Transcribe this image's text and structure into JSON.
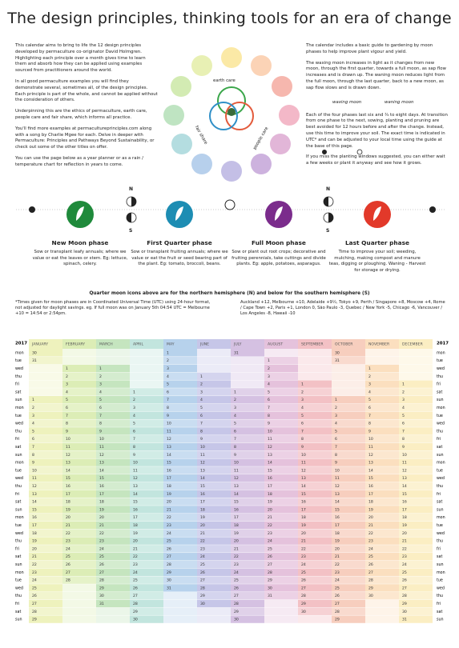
{
  "title": "The design principles, thinking tools for an era of change",
  "intro": [
    "This calendar aims to bring to life the 12 design principles developed by permaculture co-originator David Holmgren. Highlighting each principle over a month gives time to learn them and absorb how they can be applied using examples sourced from practitioners around the world.",
    "In all good permaculture examples you will find they demonstrate several, sometimes all, of the design principles. Each principle is part of the whole, and cannot be applied without the consideration of others.",
    "Underpinning this are the ethics of permaculture, earth care, people care and fair share, which informs all practice.",
    "You'll find more examples at permacultureprinciples.com along with a song by Charlie Mgee for each. Delve in deeper with Permaculture: Principles and Pathways Beyond Sustainability, or check out some of the other titles on offer.",
    "You can use the page below as a year planner or as a rain / temperature chart for reflection in years to come."
  ],
  "moon_guide": {
    "intro": [
      "The calendar includes a basic guide to gardening by moon phases to help improve plant vigour and yield.",
      "The waxing moon increases in light as it changes from new moon, through the first quarter, towards a full moon, as sap flow increases and is drawn up. The waning moon reduces light from the full moon, through the last quarter, back to a new moon, as sap flow slows and is drawn down."
    ],
    "waxing": "waxing moon",
    "waning": "waning moon",
    "details": [
      "Each of the four phases last six and ¾ to eight days. At transition from one phase to the next, sowing, planting and pruning are best avoided for 12 hours before and after the change. Instead, use this time to improve your soil. The exact time is indicated in UTC* and can be adjusted to your local time using the guide at the base of this page.",
      "If you miss the planting windows suggested, you can either wait a few weeks or plant it anyway and see how it grows."
    ]
  },
  "ethics": [
    "earth care",
    "people care",
    "fair share"
  ],
  "hemispheres": {
    "north": "N",
    "south": "S"
  },
  "phases": [
    {
      "name": "New Moon phase",
      "text": "Sow or transplant leafy annuals; where we value or eat the leaves or stem. Eg: lettuce, spinach, celery.",
      "color": "#1f8a3b"
    },
    {
      "name": "First Quarter phase",
      "text": "Sow or transplant fruiting annuals; where we value or eat the fruit or seed bearing part of the plant. Eg: tomato, broccoli, beans.",
      "color": "#1d8db3"
    },
    {
      "name": "Full Moon phase",
      "text": "Sow or plant out root crops; decorative and fruiting perennials, take cuttings and divide plants. Eg: apple, potatoes, asparagus.",
      "color": "#7b2c8c"
    },
    {
      "name": "Last Quarter phase",
      "text": "Time to improve your soil; weeding, mulching, making compost and manure teas, digging or ploughing. Waning - Harvest for storage or drying.",
      "color": "#e2392a"
    }
  ],
  "hemisphere_note": "Quarter moon icons above are for the northern hemisphere (N) and below for the southern hemisphere (S)",
  "utc_note": "*Times given for moon phases are in Coordinated Universal Time (UTC) using 24-hour format, not adjusted for daylight savings. eg. If full moon was on January 5th 04:54 UTC = Melbourne +10 = 14:54 or 2:54pm.",
  "timezones": "Auckland +12, Melbourne +10, Adelaide +9½, Tokyo +9, Perth / Singapore +8, Moscow +4, Rome / Cape Town +2, Paris +1, London 0, São Paulo -3, Quebec / New York -5, Chicago -6, Vancouver / Los Angeles -8, Hawaii -10",
  "calendar": {
    "year": "2017",
    "weekdays": [
      "mon",
      "tue",
      "wed",
      "thu",
      "fri",
      "sat",
      "sun"
    ],
    "months": [
      {
        "name": "JANUARY",
        "color": "#eef2bd",
        "days": [
          30,
          31,
          null,
          null,
          null,
          null,
          1,
          2,
          3,
          4,
          5,
          6,
          7,
          8,
          9,
          10,
          11,
          12,
          13,
          14,
          15,
          16,
          17,
          18,
          19,
          20,
          21,
          22,
          23,
          24,
          25,
          26,
          27,
          28,
          29
        ]
      },
      {
        "name": "FEBRUARY",
        "color": "#dcedb6",
        "days": [
          null,
          null,
          1,
          2,
          3,
          4,
          5,
          6,
          7,
          8,
          9,
          10,
          11,
          12,
          13,
          14,
          15,
          16,
          17,
          18,
          19,
          20,
          21,
          22,
          23,
          24,
          25,
          26,
          27,
          28,
          null,
          null,
          null,
          null,
          null
        ]
      },
      {
        "name": "MARCH",
        "color": "#c5e5bf",
        "days": [
          null,
          null,
          1,
          2,
          3,
          4,
          5,
          6,
          7,
          8,
          9,
          10,
          11,
          12,
          13,
          14,
          15,
          16,
          17,
          18,
          19,
          20,
          21,
          22,
          23,
          24,
          25,
          26,
          27,
          28,
          29,
          30,
          31,
          null,
          null
        ]
      },
      {
        "name": "APRIL",
        "color": "#c2e5de",
        "days": [
          null,
          null,
          null,
          null,
          null,
          1,
          2,
          3,
          4,
          5,
          6,
          7,
          8,
          9,
          10,
          11,
          12,
          13,
          14,
          15,
          16,
          17,
          18,
          19,
          20,
          21,
          22,
          23,
          24,
          25,
          26,
          27,
          28,
          29,
          30
        ]
      },
      {
        "name": "MAY",
        "color": "#b7d2ec",
        "days": [
          1,
          2,
          3,
          4,
          5,
          6,
          7,
          8,
          9,
          10,
          11,
          12,
          13,
          14,
          15,
          16,
          17,
          18,
          19,
          20,
          21,
          22,
          23,
          24,
          25,
          26,
          27,
          28,
          29,
          30,
          31,
          null,
          null,
          null,
          null
        ]
      },
      {
        "name": "JUNE",
        "color": "#c6c6e8",
        "days": [
          null,
          null,
          null,
          1,
          2,
          3,
          4,
          5,
          6,
          7,
          8,
          9,
          10,
          11,
          12,
          13,
          14,
          15,
          16,
          17,
          18,
          19,
          20,
          21,
          22,
          23,
          24,
          25,
          26,
          27,
          28,
          29,
          30,
          null,
          null
        ]
      },
      {
        "name": "JULY",
        "color": "#d5c1e2",
        "days": [
          31,
          null,
          null,
          null,
          null,
          1,
          2,
          3,
          4,
          5,
          6,
          7,
          8,
          9,
          10,
          11,
          12,
          13,
          14,
          15,
          16,
          17,
          18,
          19,
          20,
          21,
          22,
          23,
          24,
          25,
          26,
          27,
          28,
          29,
          30
        ]
      },
      {
        "name": "AUGUST",
        "color": "#e5c2dc",
        "days": [
          null,
          1,
          2,
          3,
          4,
          5,
          6,
          7,
          8,
          9,
          10,
          11,
          12,
          13,
          14,
          15,
          16,
          17,
          18,
          19,
          20,
          21,
          22,
          23,
          24,
          25,
          26,
          27,
          28,
          29,
          30,
          31,
          null,
          null,
          null
        ]
      },
      {
        "name": "SEPTEMBER",
        "color": "#f3c1c5",
        "days": [
          null,
          null,
          null,
          null,
          1,
          2,
          3,
          4,
          5,
          6,
          7,
          8,
          9,
          10,
          11,
          12,
          13,
          14,
          15,
          16,
          17,
          18,
          19,
          20,
          21,
          22,
          23,
          24,
          25,
          26,
          27,
          28,
          29,
          30,
          null
        ]
      },
      {
        "name": "OCTOBER",
        "color": "#f7cebe",
        "days": [
          30,
          31,
          null,
          null,
          null,
          null,
          1,
          2,
          3,
          4,
          5,
          6,
          7,
          8,
          9,
          10,
          11,
          12,
          13,
          14,
          15,
          16,
          17,
          18,
          19,
          20,
          21,
          22,
          23,
          24,
          25,
          26,
          27,
          28,
          29
        ]
      },
      {
        "name": "NOVEMBER",
        "color": "#fbdfbf",
        "days": [
          null,
          null,
          1,
          2,
          3,
          4,
          5,
          6,
          7,
          8,
          9,
          10,
          11,
          12,
          13,
          14,
          15,
          16,
          17,
          18,
          19,
          20,
          21,
          22,
          23,
          24,
          25,
          26,
          27,
          28,
          29,
          30,
          null,
          null,
          null
        ]
      },
      {
        "name": "DECEMBER",
        "color": "#fbeec3",
        "days": [
          null,
          null,
          null,
          null,
          1,
          2,
          3,
          4,
          5,
          6,
          7,
          8,
          9,
          10,
          11,
          12,
          13,
          14,
          15,
          16,
          17,
          18,
          19,
          20,
          21,
          22,
          23,
          24,
          25,
          26,
          27,
          28,
          29,
          30,
          31
        ]
      }
    ]
  }
}
